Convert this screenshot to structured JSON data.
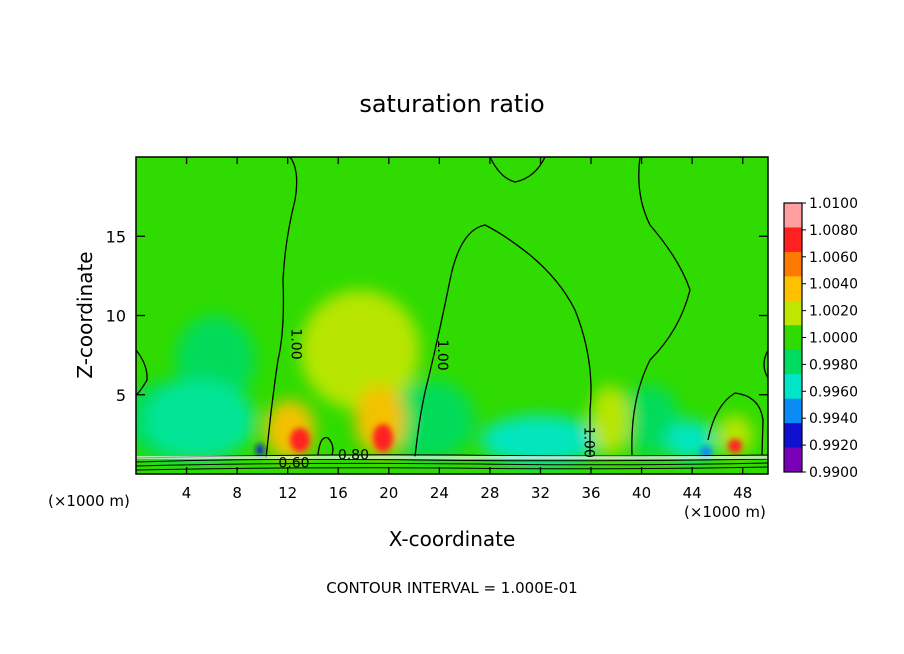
{
  "chart_data": {
    "type": "contour",
    "title": "saturation ratio",
    "xlabel": "X-coordinate",
    "ylabel": "Z-coordinate",
    "x_unit": "(×1000 m)",
    "z_unit": "(×1000 m)",
    "xlim": [
      0,
      50
    ],
    "ylim": [
      0,
      20
    ],
    "x_ticks": [
      4,
      8,
      12,
      16,
      20,
      24,
      28,
      32,
      36,
      40,
      44,
      48
    ],
    "y_ticks": [
      5,
      10,
      15
    ],
    "footer": "CONTOUR INTERVAL = 1.000E-01",
    "contour_labels": [
      {
        "text": "1.00",
        "x": 12.3,
        "z": 8.2
      },
      {
        "text": "1.00",
        "x": 23.9,
        "z": 7.5
      },
      {
        "text": "1.00",
        "x": 35.5,
        "z": 2.0
      },
      {
        "text": "0.80",
        "x": 17.2,
        "z": 0.9
      },
      {
        "text": "0.60",
        "x": 12.5,
        "z": 0.4
      }
    ],
    "colorbar": {
      "levels": [
        "1.0100",
        "1.0080",
        "1.0060",
        "1.0040",
        "1.0020",
        "1.0000",
        "0.9980",
        "0.9960",
        "0.9940",
        "0.9920",
        "0.9900"
      ],
      "colors": [
        "#ff9f9f",
        "#ff2020",
        "#ff7a00",
        "#ffc000",
        "#bfe600",
        "#2fdb00",
        "#00dc5f",
        "#00e6c9",
        "#0a8bf5",
        "#1010d0",
        "#7a00b8"
      ]
    }
  }
}
